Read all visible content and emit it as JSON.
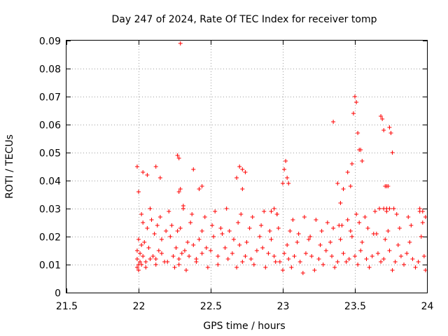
{
  "chart_data": {
    "type": "scatter",
    "title": "Day 247 of 2024, Rate Of TEC Index for receiver tomp",
    "xlabel": "GPS time / hours",
    "ylabel": "ROTI / TECUs",
    "xlim": [
      21.5,
      24.0
    ],
    "ylim": [
      0.0,
      0.09
    ],
    "xticks": [
      21.5,
      22.0,
      22.5,
      23.0,
      23.5,
      24.0
    ],
    "xtick_labels": [
      "21.5",
      "22",
      "22.5",
      "23",
      "23.5",
      "24"
    ],
    "yticks": [
      0.0,
      0.01,
      0.02,
      0.03,
      0.04,
      0.05,
      0.06,
      0.07,
      0.08,
      0.09
    ],
    "ytick_labels": [
      "0",
      "0.01",
      "0.02",
      "0.03",
      "0.04",
      "0.05",
      "0.06",
      "0.07",
      "0.08",
      "0.09"
    ],
    "grid": true,
    "marker": "plus",
    "series": [
      {
        "name": "ROTI",
        "color": "#ff0000",
        "x": [
          21.99,
          21.99,
          22.0,
          22.01,
          22.02,
          22.03,
          22.05,
          22.07,
          22.1,
          22.12,
          22.14,
          22.16,
          22.2,
          22.24,
          22.26,
          22.28,
          22.3,
          22.32,
          22.35,
          22.38,
          22.4,
          22.44,
          22.47,
          22.5,
          22.55,
          22.6,
          22.65,
          22.7,
          22.74,
          22.78,
          22.82,
          22.86,
          22.9,
          22.94,
          22.98,
          23.01,
          23.04,
          23.08,
          23.12,
          23.16,
          23.2,
          23.25,
          23.3,
          23.34,
          23.38,
          23.42,
          23.46,
          23.5,
          23.54,
          23.58,
          23.62,
          23.66,
          23.7,
          23.74,
          23.78,
          23.82,
          23.86,
          23.9,
          23.94,
          23.98,
          21.99,
          22.0,
          22.01,
          22.02,
          22.05,
          22.08,
          22.12,
          22.18,
          22.25,
          22.28,
          22.33,
          22.4,
          22.48,
          22.55,
          22.62,
          22.68,
          22.72,
          22.8,
          22.88,
          22.95,
          23.0,
          23.06,
          23.14,
          23.22,
          23.28,
          23.36,
          23.44,
          23.52,
          23.6,
          23.68,
          23.76,
          23.84,
          23.92,
          23.99,
          22.0,
          22.04,
          22.11,
          22.16,
          22.22,
          22.27,
          22.34,
          22.42,
          22.52,
          22.58,
          22.66,
          22.75,
          22.84,
          22.92,
          23.03,
          23.1,
          23.18,
          23.26,
          23.33,
          23.4,
          23.48,
          23.55,
          23.63,
          23.71,
          23.8,
          23.88,
          23.96,
          22.03,
          22.06,
          22.09,
          22.13,
          22.19,
          22.23,
          22.29,
          22.36,
          22.44,
          22.51,
          22.57,
          22.63,
          22.69,
          22.77,
          22.85,
          22.91,
          22.97,
          23.05,
          23.11,
          23.19,
          23.27,
          23.35,
          23.41,
          23.47,
          23.53,
          23.59,
          23.65,
          23.73,
          23.81,
          23.89,
          23.97,
          22.02,
          22.08,
          22.15,
          22.21,
          22.31,
          22.37,
          22.46,
          22.53,
          22.61,
          22.71,
          22.79,
          22.87,
          22.96,
          23.07,
          23.15,
          23.23,
          23.31,
          23.39,
          23.45,
          23.51,
          23.57,
          23.64,
          23.72,
          23.79,
          23.87,
          23.95,
          21.99,
          22.0,
          22.03,
          22.06,
          22.12,
          22.15,
          22.27,
          22.28,
          22.29,
          22.38,
          22.42,
          22.44,
          22.68,
          22.7,
          22.72,
          22.74,
          22.72,
          22.92,
          22.94,
          22.96,
          23.0,
          23.01,
          23.02,
          23.03,
          23.04,
          23.35,
          23.38,
          23.4,
          23.42,
          23.45,
          23.47,
          23.48,
          23.49,
          23.5,
          23.51,
          23.52,
          23.53,
          23.54,
          23.55,
          23.67,
          23.68,
          23.69,
          23.7,
          23.71,
          23.72,
          23.73,
          23.74,
          23.75,
          23.76,
          23.77,
          23.7,
          23.72,
          23.74,
          23.95,
          23.97,
          23.99,
          22.29,
          22.28,
          22.31
        ],
        "y": [
          0.015,
          0.012,
          0.01,
          0.014,
          0.017,
          0.013,
          0.011,
          0.016,
          0.013,
          0.012,
          0.015,
          0.014,
          0.011,
          0.013,
          0.016,
          0.012,
          0.014,
          0.015,
          0.013,
          0.017,
          0.012,
          0.014,
          0.016,
          0.015,
          0.013,
          0.016,
          0.014,
          0.017,
          0.013,
          0.012,
          0.015,
          0.016,
          0.014,
          0.013,
          0.011,
          0.014,
          0.012,
          0.013,
          0.011,
          0.014,
          0.013,
          0.012,
          0.015,
          0.013,
          0.011,
          0.014,
          0.012,
          0.013,
          0.015,
          0.012,
          0.013,
          0.014,
          0.012,
          0.015,
          0.011,
          0.013,
          0.014,
          0.012,
          0.011,
          0.013,
          0.009,
          0.008,
          0.011,
          0.01,
          0.009,
          0.012,
          0.01,
          0.011,
          0.009,
          0.01,
          0.008,
          0.011,
          0.009,
          0.01,
          0.012,
          0.009,
          0.011,
          0.01,
          0.009,
          0.011,
          0.008,
          0.009,
          0.007,
          0.008,
          0.01,
          0.009,
          0.011,
          0.01,
          0.009,
          0.011,
          0.008,
          0.01,
          0.009,
          0.008,
          0.019,
          0.018,
          0.021,
          0.019,
          0.02,
          0.022,
          0.018,
          0.019,
          0.02,
          0.021,
          0.019,
          0.018,
          0.02,
          0.019,
          0.017,
          0.018,
          0.019,
          0.017,
          0.018,
          0.019,
          0.02,
          0.018,
          0.021,
          0.019,
          0.017,
          0.018,
          0.02,
          0.025,
          0.023,
          0.026,
          0.024,
          0.022,
          0.024,
          0.023,
          0.025,
          0.022,
          0.024,
          0.023,
          0.022,
          0.025,
          0.023,
          0.024,
          0.022,
          0.023,
          0.022,
          0.021,
          0.02,
          0.022,
          0.023,
          0.024,
          0.022,
          0.025,
          0.023,
          0.021,
          0.022,
          0.023,
          0.024,
          0.025,
          0.028,
          0.03,
          0.027,
          0.029,
          0.031,
          0.028,
          0.027,
          0.029,
          0.03,
          0.028,
          0.027,
          0.029,
          0.028,
          0.026,
          0.027,
          0.026,
          0.025,
          0.024,
          0.026,
          0.028,
          0.027,
          0.029,
          0.03,
          0.028,
          0.027,
          0.029,
          0.045,
          0.036,
          0.043,
          0.042,
          0.045,
          0.041,
          0.049,
          0.048,
          0.037,
          0.044,
          0.037,
          0.038,
          0.041,
          0.045,
          0.044,
          0.043,
          0.037,
          0.029,
          0.03,
          0.028,
          0.039,
          0.044,
          0.047,
          0.041,
          0.039,
          0.061,
          0.039,
          0.032,
          0.037,
          0.043,
          0.038,
          0.046,
          0.064,
          0.07,
          0.068,
          0.057,
          0.051,
          0.051,
          0.047,
          0.03,
          0.063,
          0.062,
          0.058,
          0.038,
          0.038,
          0.038,
          0.059,
          0.057,
          0.05,
          0.03,
          0.03,
          0.029,
          0.03,
          0.03,
          0.029,
          0.027,
          0.089,
          0.036,
          0.03
        ]
      }
    ]
  }
}
